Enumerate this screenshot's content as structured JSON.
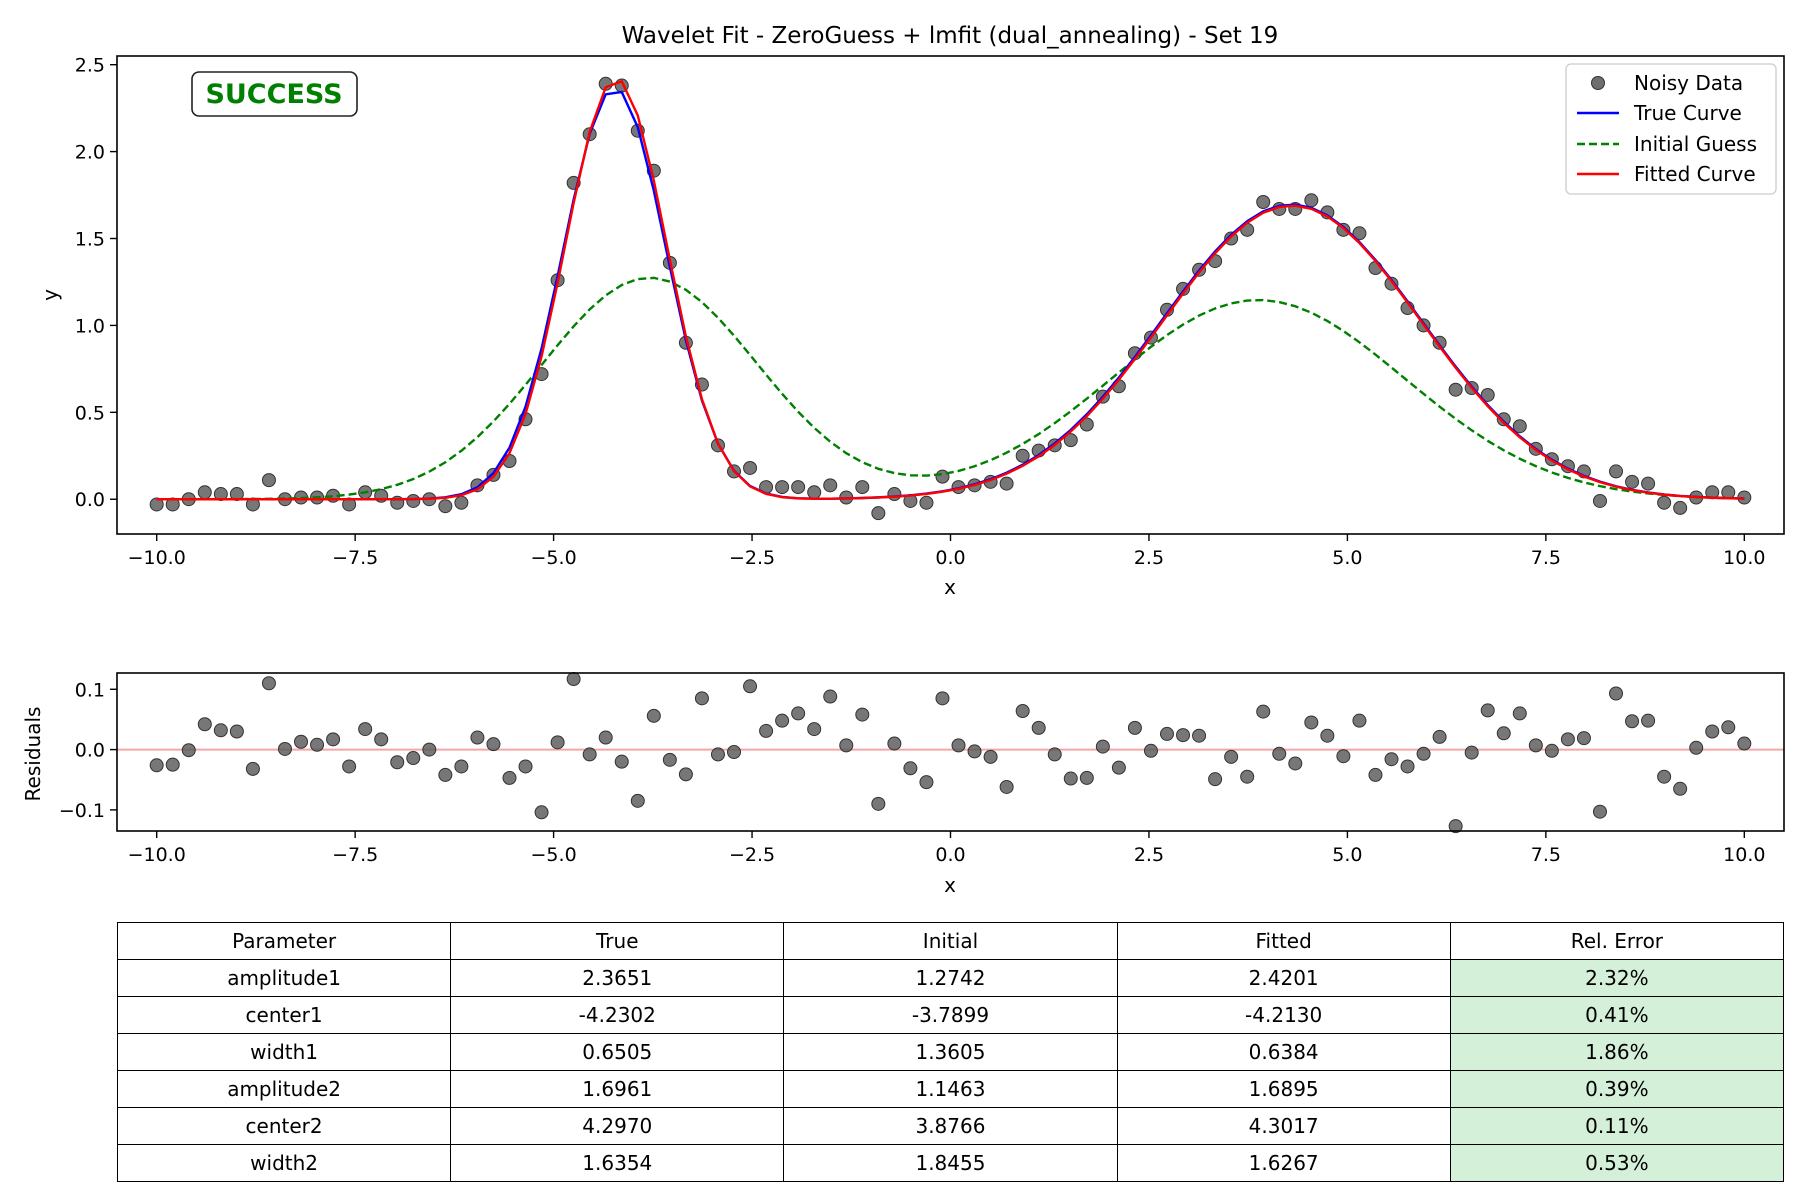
{
  "chart_data": [
    {
      "type": "line",
      "title": "Wavelet Fit - ZeroGuess + lmfit (dual_annealing) - Set 19",
      "xlabel": "x",
      "ylabel": "y",
      "xlim": [
        -10.5,
        10.5
      ],
      "ylim": [
        -0.2,
        2.55
      ],
      "xticks": [
        -10.0,
        -7.5,
        -5.0,
        -2.5,
        0.0,
        2.5,
        5.0,
        7.5,
        10.0
      ],
      "xtick_labels": [
        "−10.0",
        "−7.5",
        "−5.0",
        "−2.5",
        "0.0",
        "2.5",
        "5.0",
        "7.5",
        "10.0"
      ],
      "yticks": [
        0.0,
        0.5,
        1.0,
        1.5,
        2.0,
        2.5
      ],
      "ytick_labels": [
        "0.0",
        "0.5",
        "1.0",
        "1.5",
        "2.0",
        "2.5"
      ],
      "grid": false,
      "legend_position": "top-right",
      "status_badge": "SUCCESS",
      "noisy_data_x_range": [
        -10,
        10
      ],
      "noisy_data_count": 100,
      "noisy_data_y": [
        -0.03,
        -0.03,
        0.0,
        0.04,
        0.03,
        0.03,
        -0.03,
        0.11,
        0.0,
        0.01,
        0.01,
        0.02,
        -0.03,
        0.04,
        0.02,
        -0.02,
        -0.01,
        0.0,
        -0.04,
        -0.02,
        0.08,
        0.14,
        0.22,
        0.46,
        0.72,
        1.26,
        1.82,
        2.1,
        2.39,
        2.38,
        2.12,
        1.89,
        1.36,
        0.9,
        0.66,
        0.31,
        0.16,
        0.18,
        0.07,
        0.07,
        0.07,
        0.04,
        0.08,
        0.01,
        0.07,
        -0.08,
        0.03,
        -0.01,
        -0.02,
        0.13,
        0.07,
        0.08,
        0.1,
        0.09,
        0.25,
        0.28,
        0.31,
        0.34,
        0.43,
        0.59,
        0.65,
        0.84,
        0.93,
        1.09,
        1.21,
        1.32,
        1.37,
        1.5,
        1.55,
        1.71,
        1.67,
        1.67,
        1.72,
        1.65,
        1.55,
        1.53,
        1.33,
        1.24,
        1.1,
        1.0,
        0.9,
        0.63,
        0.64,
        0.6,
        0.46,
        0.42,
        0.29,
        0.23,
        0.19,
        0.16,
        -0.01,
        0.16,
        0.1,
        0.09,
        -0.02,
        -0.05,
        0.01,
        0.04,
        0.04,
        0.01
      ],
      "series": [
        {
          "name": "Noisy Data",
          "kind": "scatter",
          "color": "#555555"
        },
        {
          "name": "True Curve",
          "kind": "line",
          "color": "#0000ff",
          "params": {
            "amplitude1": 2.3651,
            "center1": -4.2302,
            "width1": 0.6505,
            "amplitude2": 1.6961,
            "center2": 4.297,
            "width2": 1.6354
          }
        },
        {
          "name": "Initial Guess",
          "kind": "dashed",
          "color": "#008000",
          "params": {
            "amplitude1": 1.2742,
            "center1": -3.7899,
            "width1": 1.3605,
            "amplitude2": 1.1463,
            "center2": 3.8766,
            "width2": 1.8455
          }
        },
        {
          "name": "Fitted Curve",
          "kind": "line",
          "color": "#ff0000",
          "params": {
            "amplitude1": 2.4201,
            "center1": -4.213,
            "width1": 0.6384,
            "amplitude2": 1.6895,
            "center2": 4.3017,
            "width2": 1.6267
          }
        }
      ]
    },
    {
      "type": "scatter",
      "title": "",
      "xlabel": "x",
      "ylabel": "Residuals",
      "xlim": [
        -10.5,
        10.5
      ],
      "ylim": [
        -0.135,
        0.127
      ],
      "xticks": [
        -10.0,
        -7.5,
        -5.0,
        -2.5,
        0.0,
        2.5,
        5.0,
        7.5,
        10.0
      ],
      "xtick_labels": [
        "−10.0",
        "−7.5",
        "−5.0",
        "−2.5",
        "0.0",
        "2.5",
        "5.0",
        "7.5",
        "10.0"
      ],
      "yticks": [
        -0.1,
        0.0,
        0.1
      ],
      "ytick_labels": [
        "−0.1",
        "0.0",
        "0.1"
      ],
      "zero_line_color": "#f4a6a6",
      "point_color": "#555555",
      "x_range": [
        -10,
        10
      ],
      "residuals": [
        -0.026,
        -0.025,
        -0.001,
        0.042,
        0.032,
        0.03,
        -0.032,
        0.11,
        0.001,
        0.013,
        0.008,
        0.017,
        -0.028,
        0.034,
        0.017,
        -0.021,
        -0.014,
        0.0,
        -0.042,
        -0.028,
        0.02,
        0.009,
        -0.047,
        -0.028,
        -0.104,
        0.012,
        0.117,
        -0.008,
        0.02,
        -0.02,
        -0.085,
        0.056,
        -0.017,
        -0.041,
        0.085,
        -0.008,
        -0.004,
        0.105,
        0.031,
        0.048,
        0.06,
        0.034,
        0.088,
        0.007,
        0.058,
        -0.09,
        0.01,
        -0.031,
        -0.054,
        0.085,
        0.007,
        -0.003,
        -0.012,
        -0.062,
        0.064,
        0.036,
        -0.008,
        -0.048,
        -0.047,
        0.005,
        -0.03,
        0.036,
        -0.002,
        0.026,
        0.024,
        0.023,
        -0.049,
        -0.012,
        -0.045,
        0.063,
        -0.007,
        -0.023,
        0.045,
        0.023,
        -0.011,
        0.048,
        -0.042,
        -0.016,
        -0.028,
        -0.007,
        0.021,
        -0.127,
        -0.005,
        0.065,
        0.027,
        0.06,
        0.007,
        -0.002,
        0.017,
        0.019,
        -0.103,
        0.093,
        0.047,
        0.048,
        -0.045,
        -0.065,
        0.003,
        0.03,
        0.037,
        0.01
      ]
    },
    {
      "type": "table",
      "columns": [
        "Parameter",
        "True",
        "Initial",
        "Fitted",
        "Rel. Error"
      ],
      "rows": [
        [
          "amplitude1",
          "2.3651",
          "1.2742",
          "2.4201",
          "2.32%"
        ],
        [
          "center1",
          "-4.2302",
          "-3.7899",
          "-4.2130",
          "0.41%"
        ],
        [
          "width1",
          "0.6505",
          "1.3605",
          "0.6384",
          "1.86%"
        ],
        [
          "amplitude2",
          "1.6961",
          "1.1463",
          "1.6895",
          "0.39%"
        ],
        [
          "center2",
          "4.2970",
          "3.8766",
          "4.3017",
          "0.11%"
        ],
        [
          "width2",
          "1.6354",
          "1.8455",
          "1.6267",
          "0.53%"
        ]
      ],
      "error_cell_color": "#d5f0d9"
    }
  ]
}
